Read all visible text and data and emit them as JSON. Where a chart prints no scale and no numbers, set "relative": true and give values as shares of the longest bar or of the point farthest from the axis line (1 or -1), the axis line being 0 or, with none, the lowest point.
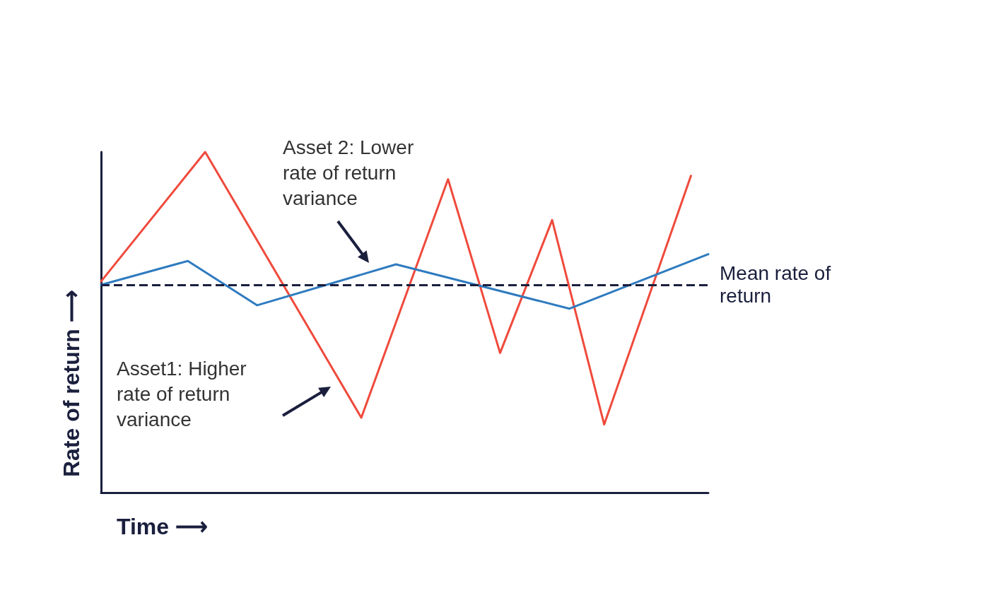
{
  "chart_data": {
    "type": "line",
    "relative": true,
    "xlabel": "Time ⟶",
    "ylabel": "Rate of return ⟶",
    "grid": false,
    "marker": "none",
    "line_style": "solid",
    "categories": [
      null,
      null,
      null,
      null,
      null,
      null,
      null,
      null,
      null,
      null,
      null,
      null,
      null,
      null,
      null,
      null,
      null,
      null,
      null,
      null,
      null,
      null,
      null,
      null,
      null,
      null,
      null,
      null,
      null,
      null,
      null,
      null,
      null,
      null,
      null,
      null
    ],
    "series": [
      {
        "color": "#ef4a3c",
        "values": [
          0.62,
          null,
          null,
          null,
          null,
          null,
          1,
          null,
          null,
          null,
          null,
          null,
          null,
          null,
          null,
          0.22,
          null,
          null,
          null,
          null,
          0.92,
          null,
          null,
          0.41,
          null,
          null,
          0.8,
          null,
          null,
          0.2,
          null,
          null,
          null,
          null,
          0.93,
          null
        ]
      },
      {
        "color": "#2f7bbf",
        "values": [
          0.61,
          null,
          null,
          null,
          null,
          0.68,
          null,
          null,
          null,
          0.55,
          null,
          null,
          null,
          null,
          null,
          null,
          null,
          0.67,
          null,
          null,
          null,
          null,
          null,
          null,
          null,
          null,
          null,
          0.54,
          null,
          null,
          null,
          null,
          null,
          null,
          null,
          0.7
        ]
      }
    ],
    "ref_lines": [
      {
        "axis": "y",
        "value": 0.61,
        "label": "Mean rate of return",
        "color": "#1a1f3d",
        "line_style": "dashed"
      }
    ],
    "annotations": [
      "Asset 2: Lower rate of return variance",
      "Asset1: Higher rate of return variance"
    ]
  }
}
